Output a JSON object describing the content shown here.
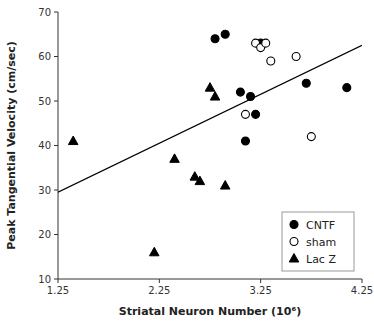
{
  "chart_data": {
    "type": "scatter",
    "xlabel": "Striatal Neuron Number (10⁶)",
    "ylabel": "Peak Tangential Velocity (cm/sec)",
    "series": [
      {
        "name": "CNTF",
        "marker": "circle",
        "color": "#000000",
        "x": [
          2.8,
          2.9,
          3.05,
          3.1,
          3.15,
          3.2,
          3.25,
          3.7,
          4.1
        ],
        "values": [
          64,
          65,
          52,
          41,
          51,
          47,
          63,
          54,
          53
        ]
      },
      {
        "name": "sham",
        "marker": "circle-open",
        "color": "#000000",
        "x": [
          3.1,
          3.2,
          3.25,
          3.3,
          3.35,
          3.6,
          3.75
        ],
        "values": [
          47,
          63,
          62,
          63,
          59,
          60,
          42
        ]
      },
      {
        "name": "Lac Z",
        "marker": "triangle",
        "color": "#000000",
        "x": [
          1.4,
          2.2,
          2.4,
          2.6,
          2.65,
          2.75,
          2.8,
          2.9
        ],
        "values": [
          41,
          16,
          37,
          33,
          32,
          53,
          51,
          31
        ]
      },
      {
        "type": "line",
        "color": "#000000",
        "x": [
          1.25,
          4.25
        ],
        "values": [
          29.5,
          62.5
        ]
      }
    ],
    "xlim": [
      1.25,
      4.25
    ],
    "ylim": [
      10,
      70
    ],
    "xticks": [
      1.25,
      2.25,
      3.25,
      4.25
    ],
    "yticks": [
      10,
      20,
      30,
      40,
      50,
      60,
      70
    ],
    "grid": false,
    "legend": "lower right"
  }
}
